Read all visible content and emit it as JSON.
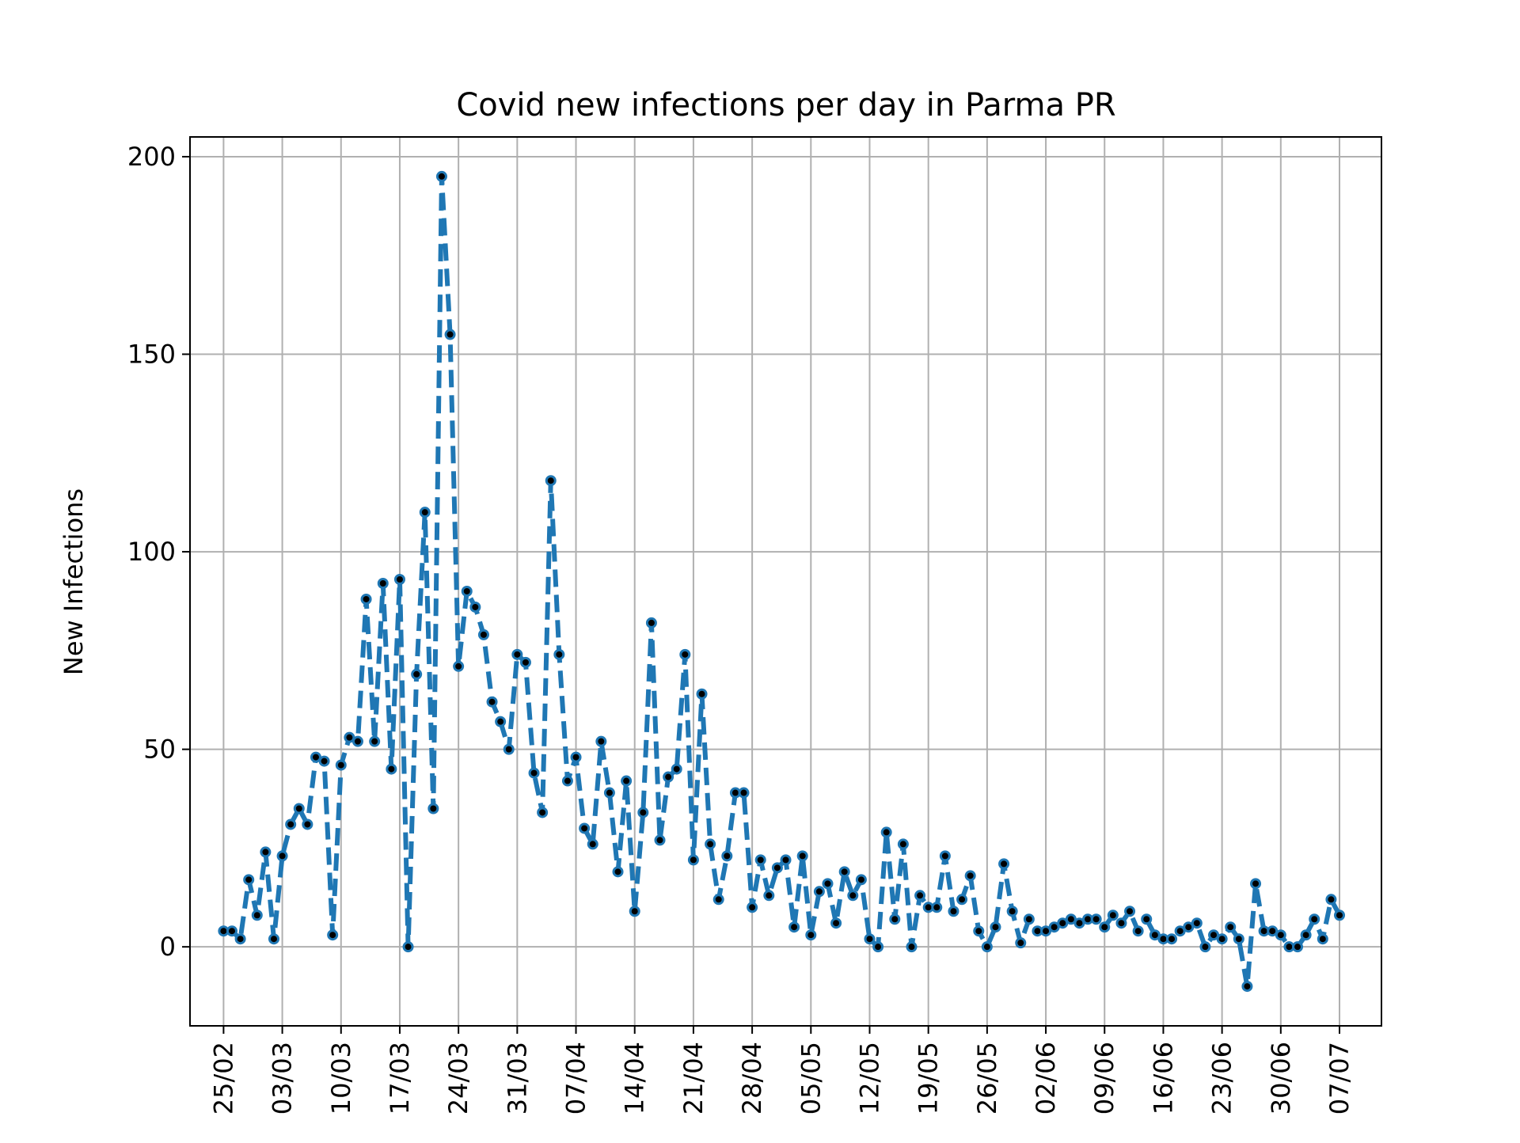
{
  "chart_data": {
    "type": "line",
    "title": "Covid new infections per day in Parma PR",
    "xlabel": "",
    "ylabel": "New Infections",
    "xlim": [
      "2020-02-21",
      "2020-07-12"
    ],
    "ylim": [
      -20,
      205
    ],
    "y_ticks": [
      0,
      50,
      100,
      150,
      200
    ],
    "x_ticks": [
      {
        "date": "2020-02-25",
        "label": "25/02"
      },
      {
        "date": "2020-03-03",
        "label": "03/03"
      },
      {
        "date": "2020-03-10",
        "label": "10/03"
      },
      {
        "date": "2020-03-17",
        "label": "17/03"
      },
      {
        "date": "2020-03-24",
        "label": "24/03"
      },
      {
        "date": "2020-03-31",
        "label": "31/03"
      },
      {
        "date": "2020-04-07",
        "label": "07/04"
      },
      {
        "date": "2020-04-14",
        "label": "14/04"
      },
      {
        "date": "2020-04-21",
        "label": "21/04"
      },
      {
        "date": "2020-04-28",
        "label": "28/04"
      },
      {
        "date": "2020-05-05",
        "label": "05/05"
      },
      {
        "date": "2020-05-12",
        "label": "12/05"
      },
      {
        "date": "2020-05-19",
        "label": "19/05"
      },
      {
        "date": "2020-05-26",
        "label": "26/05"
      },
      {
        "date": "2020-06-02",
        "label": "02/06"
      },
      {
        "date": "2020-06-09",
        "label": "09/06"
      },
      {
        "date": "2020-06-16",
        "label": "16/06"
      },
      {
        "date": "2020-06-23",
        "label": "23/06"
      },
      {
        "date": "2020-06-30",
        "label": "30/06"
      },
      {
        "date": "2020-07-07",
        "label": "07/07"
      }
    ],
    "grid": true,
    "series": [
      {
        "color": "#1f77b4",
        "marker_color": "#000000",
        "line_style": "dashed",
        "x_start": "2020-02-25",
        "x_step_days": 1,
        "values": [
          4,
          4,
          2,
          17,
          8,
          24,
          2,
          23,
          31,
          35,
          31,
          48,
          47,
          3,
          46,
          53,
          52,
          88,
          52,
          92,
          45,
          93,
          0,
          69,
          110,
          35,
          195,
          155,
          71,
          90,
          86,
          79,
          62,
          57,
          50,
          74,
          72,
          44,
          34,
          118,
          74,
          42,
          48,
          30,
          26,
          52,
          39,
          19,
          42,
          9,
          34,
          82,
          27,
          43,
          45,
          74,
          22,
          64,
          26,
          12,
          23,
          39,
          39,
          10,
          22,
          13,
          20,
          22,
          5,
          23,
          3,
          14,
          16,
          6,
          19,
          13,
          17,
          2,
          0,
          29,
          7,
          26,
          0,
          13,
          10,
          10,
          23,
          9,
          12,
          18,
          4,
          0,
          5,
          21,
          9,
          1,
          7,
          4,
          4,
          5,
          6,
          7,
          6,
          7,
          7,
          5,
          8,
          6,
          9,
          4,
          7,
          3,
          2,
          2,
          4,
          5,
          6,
          0,
          3,
          2,
          5,
          2,
          -10,
          16,
          4,
          4,
          3,
          0,
          0,
          3,
          7,
          2,
          12,
          8
        ]
      }
    ]
  }
}
